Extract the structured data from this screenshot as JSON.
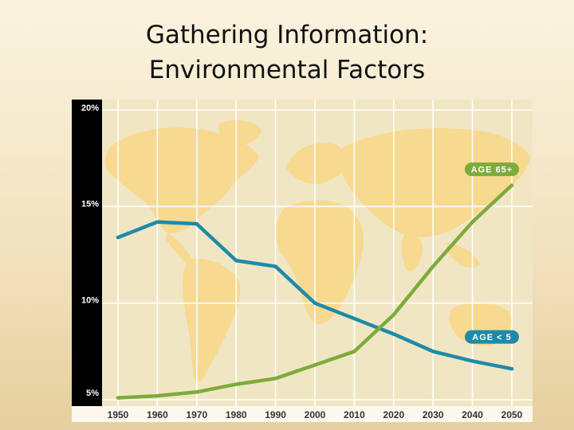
{
  "slide": {
    "title_line1": "Gathering Information:",
    "title_line2": "Environmental Factors"
  },
  "chart_data": {
    "type": "line",
    "title": "",
    "xlabel": "",
    "ylabel": "",
    "x": [
      1950,
      1960,
      1970,
      1980,
      1990,
      2000,
      2010,
      2020,
      2030,
      2040,
      2050
    ],
    "xtick_labels": [
      "1950",
      "1960",
      "1970",
      "1980",
      "1990",
      "2000",
      "2010",
      "2020",
      "2030",
      "2040",
      "2050"
    ],
    "ylim": [
      5,
      20
    ],
    "yticks": [
      {
        "value": 5,
        "label": "5%"
      },
      {
        "value": 10,
        "label": "10%"
      },
      {
        "value": 15,
        "label": "15%"
      },
      {
        "value": 20,
        "label": "20%"
      }
    ],
    "grid": true,
    "series": [
      {
        "name": "AGE < 5",
        "color": "#1e8aa8",
        "label_at": 2050,
        "values": [
          13.4,
          14.2,
          14.1,
          12.2,
          11.9,
          10.0,
          9.2,
          8.4,
          7.5,
          7.0,
          6.6
        ]
      },
      {
        "name": "AGE 65+",
        "color": "#7dab3c",
        "label_at": 2050,
        "values": [
          5.1,
          5.2,
          5.4,
          5.8,
          6.1,
          6.8,
          7.5,
          9.4,
          11.9,
          14.2,
          16.1
        ]
      }
    ],
    "background": "world map",
    "colors": {
      "plot_bg": "#f1e6c3",
      "continent": "#f7d98f",
      "grid": "#ffffff",
      "axis_band": "#000000",
      "axis_text": "#ffffff",
      "xaxis_band": "#fbf8ee",
      "xaxis_text": "#333333"
    }
  }
}
